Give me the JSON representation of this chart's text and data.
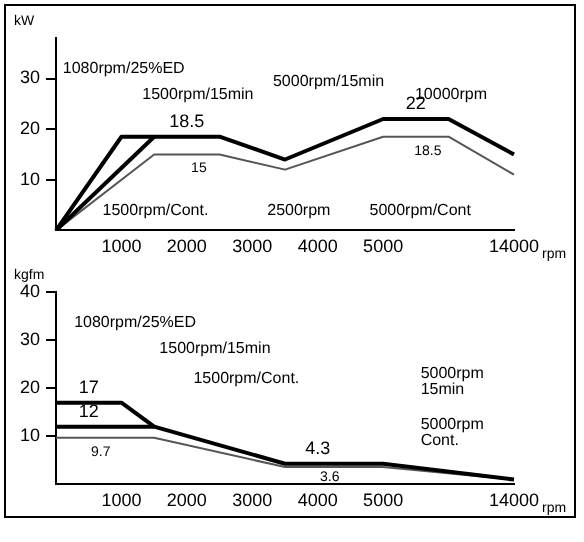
{
  "chart_data": [
    {
      "type": "line",
      "ylabel": "kW",
      "xlabel": "rpm",
      "categories": [
        null,
        null,
        "1000",
        null,
        "2000",
        null,
        "3000",
        null,
        "4000",
        null,
        "5000",
        null,
        null,
        null,
        "14000"
      ],
      "series": [
        {
          "color": "#000000",
          "values": [
            0,
            null,
            18.5,
            18.5,
            18.5,
            18.5,
            null,
            14,
            null,
            null,
            22,
            22,
            22,
            null,
            15
          ],
          "value_labels": [
            null,
            null,
            null,
            null,
            "18.5",
            null,
            null,
            null,
            null,
            null,
            null,
            "22",
            null,
            null,
            null
          ]
        },
        {
          "color": "#000000",
          "values": [
            0,
            null,
            null,
            18.5,
            null,
            null,
            null,
            null,
            null,
            null,
            null,
            null,
            null,
            null,
            null
          ]
        },
        {
          "color": "#555555",
          "values": [
            0,
            null,
            null,
            15,
            15,
            15,
            null,
            12,
            null,
            null,
            18.5,
            18.5,
            18.5,
            null,
            11
          ],
          "value_labels": [
            null,
            null,
            null,
            null,
            "15",
            null,
            null,
            null,
            null,
            null,
            null,
            "18.5",
            null,
            null,
            null
          ]
        }
      ],
      "ylim": [
        0,
        38
      ],
      "yticks": [
        10,
        20,
        30
      ],
      "grid": false,
      "legend": false,
      "marker": "none",
      "annotations": [
        "1080rpm/25%ED",
        "1500rpm/15min",
        "1500rpm/Cont.",
        "2500rpm",
        "5000rpm/15min",
        "10000rpm",
        "5000rpm/Cont"
      ]
    },
    {
      "type": "line",
      "ylabel": "kgfm",
      "xlabel": "rpm",
      "categories": [
        null,
        null,
        "1000",
        null,
        "2000",
        null,
        "3000",
        null,
        "4000",
        null,
        "5000",
        null,
        null,
        null,
        "14000"
      ],
      "series": [
        {
          "color": "#000000",
          "values": [
            17,
            17,
            17,
            12,
            null,
            null,
            null,
            4.3,
            4.3,
            null,
            4.3,
            null,
            null,
            null,
            1
          ],
          "value_labels": [
            null,
            "17",
            null,
            null,
            null,
            null,
            null,
            null,
            "4.3",
            null,
            null,
            null,
            null,
            null,
            null
          ]
        },
        {
          "color": "#000000",
          "values": [
            12,
            12,
            null,
            12,
            null,
            null,
            null,
            null,
            null,
            null,
            null,
            null,
            null,
            null,
            null
          ],
          "value_labels": [
            null,
            "12",
            null,
            null,
            null,
            null,
            null,
            null,
            null,
            null,
            null,
            null,
            null,
            null,
            null
          ]
        },
        {
          "color": "#555555",
          "values": [
            9.7,
            9.7,
            null,
            9.7,
            null,
            null,
            null,
            3.6,
            3.6,
            null,
            3.6,
            null,
            null,
            null,
            1
          ],
          "value_labels": [
            null,
            "9.7",
            null,
            null,
            null,
            null,
            null,
            null,
            "3.6",
            null,
            null,
            null,
            null,
            null,
            null
          ]
        }
      ],
      "ylim": [
        0,
        40
      ],
      "yticks": [
        10,
        20,
        30,
        40
      ],
      "grid": false,
      "legend": false,
      "marker": "none",
      "annotations": [
        "1080rpm/25%ED",
        "1500rpm/15min",
        "1500rpm/Cont.",
        "5000rpm\n15min",
        "5000rpm\nCont."
      ]
    }
  ]
}
